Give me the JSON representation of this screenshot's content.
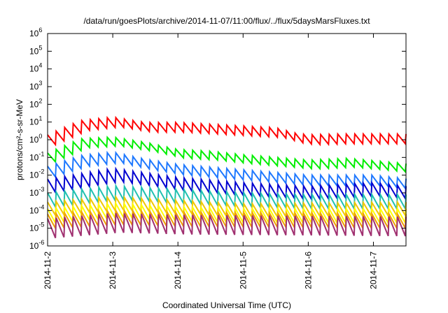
{
  "chart_data": {
    "type": "line",
    "title": "/data/run/goesPlots/archive/2014-11-07/11:00/flux/../flux/5daysMarsFluxes.txt",
    "xlabel": "Coordinated Universal Time (UTC)",
    "ylabel": "protons/cm²-s-sr-MeV",
    "y_scale": "log",
    "ylim_exp": [
      -6,
      6
    ],
    "y_ticks": [
      {
        "base": "10",
        "exp": "-6",
        "value": -6
      },
      {
        "base": "10",
        "exp": "-5",
        "value": -5
      },
      {
        "base": "10",
        "exp": "-4",
        "value": -4
      },
      {
        "base": "10",
        "exp": "-3",
        "value": -3
      },
      {
        "base": "10",
        "exp": "-2",
        "value": -2
      },
      {
        "base": "10",
        "exp": "-1",
        "value": -1
      },
      {
        "base": "10",
        "exp": "0",
        "value": 0
      },
      {
        "base": "10",
        "exp": "1",
        "value": 1
      },
      {
        "base": "10",
        "exp": "2",
        "value": 2
      },
      {
        "base": "10",
        "exp": "3",
        "value": 3
      },
      {
        "base": "10",
        "exp": "4",
        "value": 4
      },
      {
        "base": "10",
        "exp": "5",
        "value": 5
      },
      {
        "base": "10",
        "exp": "6",
        "value": 6
      }
    ],
    "xlim_days": [
      0,
      5.5
    ],
    "x_ticks": [
      {
        "label": "2014-11-2",
        "day": 0
      },
      {
        "label": "2014-11-3",
        "day": 1
      },
      {
        "label": "2014-11-4",
        "day": 2
      },
      {
        "label": "2014-11-5",
        "day": 3
      },
      {
        "label": "2014-11-6",
        "day": 4
      },
      {
        "label": "2014-11-7",
        "day": 5
      }
    ],
    "grid": false,
    "series": [
      {
        "color": "#ff0000",
        "base_log": [
          [
            0,
            0
          ],
          [
            0.5,
            0.8
          ],
          [
            1,
            1.0
          ],
          [
            1.5,
            0.7
          ],
          [
            2,
            0.7
          ],
          [
            2.5,
            0.6
          ],
          [
            3,
            0.5
          ],
          [
            3.5,
            0.4
          ],
          [
            3.8,
            0.1
          ],
          [
            4.0,
            0.0
          ],
          [
            4.5,
            0.05
          ],
          [
            5.5,
            0.05
          ]
        ],
        "amp": 0.55,
        "teeth": 42
      },
      {
        "color": "#00ee00",
        "base_log": [
          [
            0,
            -1.0
          ],
          [
            0.5,
            -0.2
          ],
          [
            1,
            -0.1
          ],
          [
            1.5,
            -0.4
          ],
          [
            2,
            -0.8
          ],
          [
            2.5,
            -0.9
          ],
          [
            3,
            -1.1
          ],
          [
            4,
            -1.4
          ],
          [
            4.6,
            -1.3
          ],
          [
            5.5,
            -1.6
          ]
        ],
        "amp": 0.5,
        "teeth": 42
      },
      {
        "color": "#1e78ff",
        "base_log": [
          [
            0,
            -1.8
          ],
          [
            0.5,
            -1.2
          ],
          [
            1,
            -1.0
          ],
          [
            1.5,
            -1.4
          ],
          [
            2,
            -1.7
          ],
          [
            3,
            -2.0
          ],
          [
            4,
            -2.3
          ],
          [
            5,
            -2.3
          ],
          [
            5.5,
            -2.5
          ]
        ],
        "amp": 0.6,
        "teeth": 42
      },
      {
        "color": "#0000d0",
        "base_log": [
          [
            0,
            -2.6
          ],
          [
            1,
            -2.0
          ],
          [
            2,
            -2.5
          ],
          [
            3,
            -2.8
          ],
          [
            4,
            -3.0
          ],
          [
            5,
            -2.8
          ],
          [
            5.5,
            -3.0
          ]
        ],
        "amp": 0.75,
        "teeth": 42
      },
      {
        "color": "#20c0b0",
        "base_log": [
          [
            0,
            -3.4
          ],
          [
            1,
            -3.0
          ],
          [
            2,
            -3.2
          ],
          [
            3,
            -3.4
          ],
          [
            4,
            -3.5
          ],
          [
            5.5,
            -3.5
          ]
        ],
        "amp": 0.8,
        "teeth": 42
      },
      {
        "color": "#f0c800",
        "base_log": [
          [
            0,
            -3.9
          ],
          [
            1,
            -3.6
          ],
          [
            2,
            -3.8
          ],
          [
            3,
            -4.0
          ],
          [
            5.5,
            -3.9
          ]
        ],
        "amp": 0.75,
        "teeth": 42
      },
      {
        "color": "#ffff00",
        "base_log": [
          [
            0,
            -4.3
          ],
          [
            1,
            -4.0
          ],
          [
            2,
            -4.2
          ],
          [
            3,
            -4.3
          ],
          [
            5.5,
            -4.3
          ]
        ],
        "amp": 0.8,
        "teeth": 42
      },
      {
        "color": "#f0a000",
        "base_log": [
          [
            0,
            -4.6
          ],
          [
            1,
            -4.4
          ],
          [
            2,
            -4.5
          ],
          [
            5.5,
            -4.6
          ]
        ],
        "amp": 0.8,
        "teeth": 42
      },
      {
        "color": "#a03070",
        "base_log": [
          [
            0,
            -5.0
          ],
          [
            1,
            -4.7
          ],
          [
            2,
            -4.8
          ],
          [
            5.5,
            -4.9
          ]
        ],
        "amp": 1.1,
        "teeth": 42
      }
    ]
  }
}
